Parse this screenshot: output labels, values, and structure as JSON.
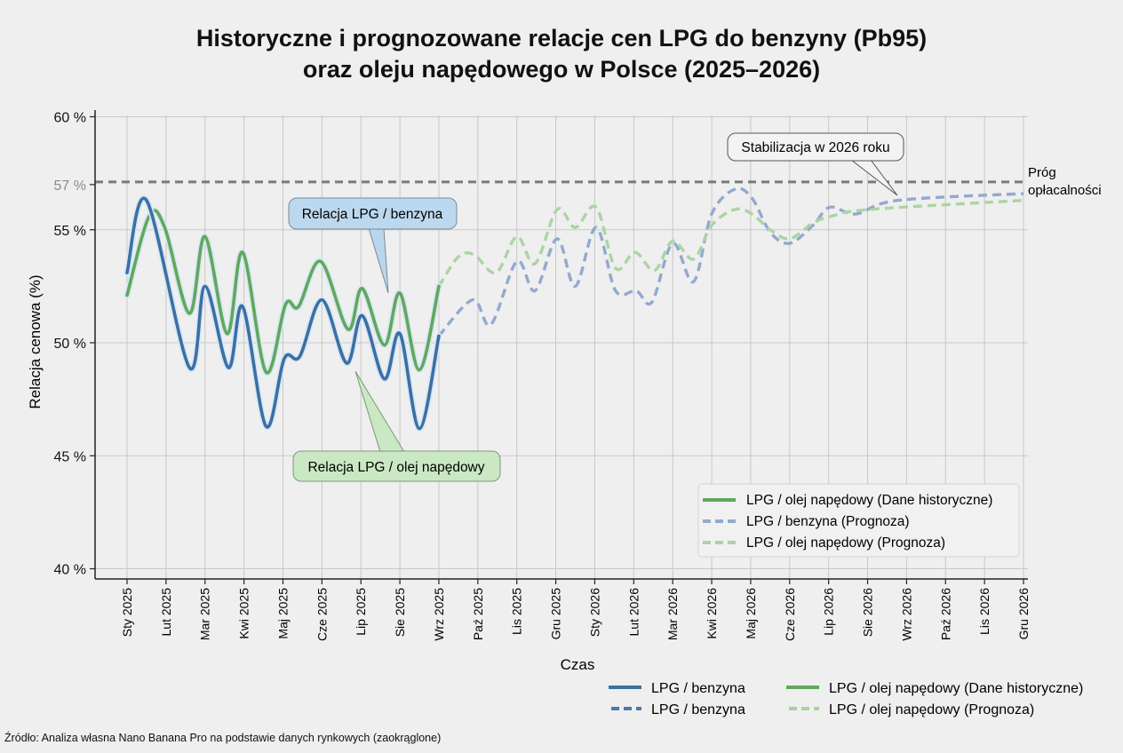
{
  "title_line1": "Historyczne i prognozowane relacje cen LPG do benzyny (Pb95)",
  "title_line2": "oraz oleju napędowego w Polsce (2025–2026)",
  "source": "Źródło: Analiza własna Nano Banana Pro na podstawie danych rynkowych (zaokrąglone)",
  "annotations": {
    "benzyna": "Relacja LPG / benzyna",
    "olej": "Relacja LPG / olej napędowy",
    "stabilizacja": "Stabilizacja w 2026 roku",
    "threshold_line1": "Próg",
    "threshold_line2": "opłacalności"
  },
  "legend_inner": [
    "LPG / olej napędowy (Dane historyczne)",
    "LPG / benzyna (Prognoza)",
    "LPG / olej napędowy (Prognoza)"
  ],
  "legend_bottom": [
    "LPG / benzyna",
    "LPG / benzyna",
    "LPG / olej napędowy (Dane historyczne)",
    "LPG / olej napędowy (Prognoza)"
  ],
  "colors": {
    "benzyna_hist": "#3d6fa3",
    "olej_hist": "#62a85c",
    "benzyna_prog": "#93a9cf",
    "olej_prog": "#acd4a4",
    "threshold": "#7a7a7a"
  },
  "chart_data": {
    "type": "line",
    "xlabel": "Czas",
    "ylabel": "Relacja cenowa (%)",
    "ylim": [
      40,
      60
    ],
    "yticks": [
      "40 %",
      "45 %",
      "50 %",
      "55 %",
      "57 %",
      "60 %"
    ],
    "ytick_values": [
      40,
      45,
      50,
      55,
      57,
      60
    ],
    "grid": true,
    "legend": "bottom-right",
    "xticks": [
      "Sty 2025",
      "Lut 2025",
      "Mar 2025",
      "Kwi 2025",
      "Maj 2025",
      "Cze 2025",
      "Lip 2025",
      "Sie 2025",
      "Wrz 2025",
      "Paź 2025",
      "Lis 2025",
      "Gru 2025",
      "Sty 2026",
      "Lut 2026",
      "Mar 2026",
      "Kwi 2026",
      "Maj 2026",
      "Cze 2026",
      "Lip 2026",
      "Sie 2026",
      "Wrz 2026",
      "Paź 2026",
      "Lis 2026",
      "Gru 2026"
    ],
    "threshold": 57,
    "series": [
      {
        "name": "LPG / benzyna",
        "style": "solid",
        "color": "#3d6fa3",
        "points": [
          [
            "2025-01-01",
            53.1
          ],
          [
            "2025-01-16",
            56.3
          ],
          [
            "2025-02-19",
            48.9
          ],
          [
            "2025-03-01",
            52.5
          ],
          [
            "2025-03-19",
            48.9
          ],
          [
            "2025-03-30",
            51.6
          ],
          [
            "2025-04-18",
            46.3
          ],
          [
            "2025-05-02",
            49.3
          ],
          [
            "2025-05-14",
            49.4
          ],
          [
            "2025-06-01",
            51.9
          ],
          [
            "2025-06-20",
            49.1
          ],
          [
            "2025-07-02",
            51.2
          ],
          [
            "2025-07-19",
            48.4
          ],
          [
            "2025-08-01",
            50.4
          ],
          [
            "2025-08-16",
            46.2
          ],
          [
            "2025-09-01",
            50.3
          ]
        ]
      },
      {
        "name": "LPG / olej napędowy (Dane historyczne)",
        "style": "solid",
        "color": "#62a85c",
        "points": [
          [
            "2025-01-01",
            52.1
          ],
          [
            "2025-01-18",
            55.6
          ],
          [
            "2025-01-30",
            55.1
          ],
          [
            "2025-02-19",
            51.3
          ],
          [
            "2025-03-01",
            54.7
          ],
          [
            "2025-03-18",
            50.4
          ],
          [
            "2025-03-30",
            54.0
          ],
          [
            "2025-04-18",
            48.7
          ],
          [
            "2025-05-03",
            51.7
          ],
          [
            "2025-05-13",
            51.6
          ],
          [
            "2025-05-30",
            53.6
          ],
          [
            "2025-06-21",
            50.6
          ],
          [
            "2025-07-02",
            52.4
          ],
          [
            "2025-07-19",
            49.9
          ],
          [
            "2025-08-01",
            52.2
          ],
          [
            "2025-08-16",
            48.8
          ],
          [
            "2025-09-01",
            52.5
          ]
        ]
      },
      {
        "name": "LPG / benzyna (Prognoza)",
        "style": "dashed",
        "color": "#93a9cf",
        "points": [
          [
            "2025-09-01",
            50.3
          ],
          [
            "2025-09-27",
            51.9
          ],
          [
            "2025-10-11",
            50.8
          ],
          [
            "2025-11-01",
            53.6
          ],
          [
            "2025-11-15",
            52.3
          ],
          [
            "2025-12-02",
            54.6
          ],
          [
            "2025-12-16",
            52.5
          ],
          [
            "2026-01-02",
            55.1
          ],
          [
            "2026-01-17",
            52.3
          ],
          [
            "2026-02-03",
            52.3
          ],
          [
            "2026-02-15",
            51.8
          ],
          [
            "2026-03-01",
            54.4
          ],
          [
            "2026-03-17",
            52.7
          ],
          [
            "2026-04-01",
            55.7
          ],
          [
            "2026-04-19",
            56.8
          ],
          [
            "2026-05-02",
            56.4
          ],
          [
            "2026-05-16",
            54.9
          ],
          [
            "2026-06-01",
            54.4
          ],
          [
            "2026-06-19",
            55.2
          ],
          [
            "2026-07-02",
            56.0
          ],
          [
            "2026-07-22",
            55.7
          ],
          [
            "2026-08-24",
            56.3
          ],
          [
            "2026-12-01",
            56.6
          ]
        ]
      },
      {
        "name": "LPG / olej napędowy (Prognoza)",
        "style": "dashed",
        "color": "#acd4a4",
        "points": [
          [
            "2025-09-01",
            52.5
          ],
          [
            "2025-09-16",
            53.8
          ],
          [
            "2025-09-28",
            53.9
          ],
          [
            "2025-10-15",
            53.1
          ],
          [
            "2025-11-01",
            54.7
          ],
          [
            "2025-11-15",
            53.5
          ],
          [
            "2025-12-02",
            55.9
          ],
          [
            "2025-12-16",
            55.1
          ],
          [
            "2026-01-02",
            56.0
          ],
          [
            "2026-01-17",
            53.3
          ],
          [
            "2026-02-02",
            54.0
          ],
          [
            "2026-02-17",
            53.2
          ],
          [
            "2026-03-01",
            54.5
          ],
          [
            "2026-03-17",
            53.7
          ],
          [
            "2026-04-01",
            55.2
          ],
          [
            "2026-04-19",
            55.9
          ],
          [
            "2026-05-02",
            55.7
          ],
          [
            "2026-05-16",
            55.0
          ],
          [
            "2026-06-01",
            54.6
          ],
          [
            "2026-06-19",
            55.3
          ],
          [
            "2026-07-03",
            55.6
          ],
          [
            "2026-08-03",
            55.9
          ],
          [
            "2026-12-01",
            56.3
          ]
        ]
      }
    ]
  }
}
